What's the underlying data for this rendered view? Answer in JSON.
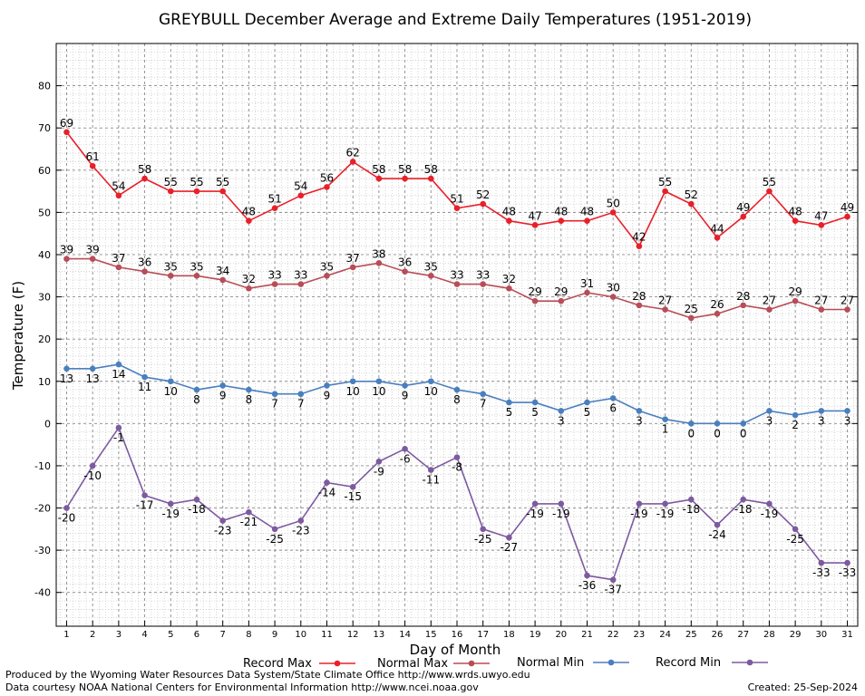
{
  "chart_data": {
    "type": "line",
    "title": "GREYBULL December Average and Extreme Daily Temperatures (1951-2019)",
    "xlabel": "Day of Month",
    "ylabel": "Temperature (F)",
    "xlim": [
      0.6,
      31.4
    ],
    "ylim": [
      -48,
      90
    ],
    "yticks": [
      -40,
      -30,
      -20,
      -10,
      0,
      10,
      20,
      30,
      40,
      50,
      60,
      70,
      80
    ],
    "x": [
      1,
      2,
      3,
      4,
      5,
      6,
      7,
      8,
      9,
      10,
      11,
      12,
      13,
      14,
      15,
      16,
      17,
      18,
      19,
      20,
      21,
      22,
      23,
      24,
      25,
      26,
      27,
      28,
      29,
      30,
      31
    ],
    "grid": true,
    "legend_position": "bottom",
    "series": [
      {
        "name": "Record Max",
        "color": "#e8202a",
        "label_side": "above",
        "values": [
          69,
          61,
          54,
          58,
          55,
          55,
          55,
          48,
          51,
          54,
          56,
          62,
          58,
          58,
          58,
          51,
          52,
          48,
          47,
          48,
          48,
          50,
          42,
          55,
          52,
          44,
          49,
          55,
          48,
          47,
          49
        ]
      },
      {
        "name": "Normal Max",
        "color": "#b84d57",
        "label_side": "above",
        "values": [
          39,
          39,
          37,
          36,
          35,
          35,
          34,
          32,
          33,
          33,
          35,
          37,
          38,
          36,
          35,
          33,
          33,
          32,
          29,
          29,
          31,
          30,
          28,
          27,
          25,
          26,
          28,
          27,
          29,
          27,
          27
        ]
      },
      {
        "name": "Normal Min",
        "color": "#4a7fbf",
        "label_side": "below",
        "values": [
          13,
          13,
          14,
          11,
          10,
          8,
          9,
          8,
          7,
          7,
          9,
          10,
          10,
          9,
          10,
          8,
          7,
          5,
          5,
          3,
          5,
          6,
          3,
          1,
          0,
          0,
          0,
          3,
          2,
          3,
          3
        ]
      },
      {
        "name": "Record Min",
        "color": "#7d5aa0",
        "label_side": "below",
        "values": [
          -20,
          -10,
          -1,
          -17,
          -19,
          -18,
          -23,
          -21,
          -25,
          -23,
          -14,
          -15,
          -9,
          -6,
          -11,
          -8,
          -25,
          -27,
          -19,
          -19,
          -36,
          -37,
          -19,
          -19,
          -18,
          -24,
          -18,
          -19,
          -25,
          -33,
          -33
        ]
      }
    ]
  },
  "footer": {
    "produced_by": "Produced by the Wyoming Water Resources Data System/State Climate Office http://www.wrds.uwyo.edu",
    "data_courtesy": "Data courtesy NOAA National Centers for Environmental Information http://www.ncei.noaa.gov",
    "created": "Created:  25-Sep-2024"
  }
}
